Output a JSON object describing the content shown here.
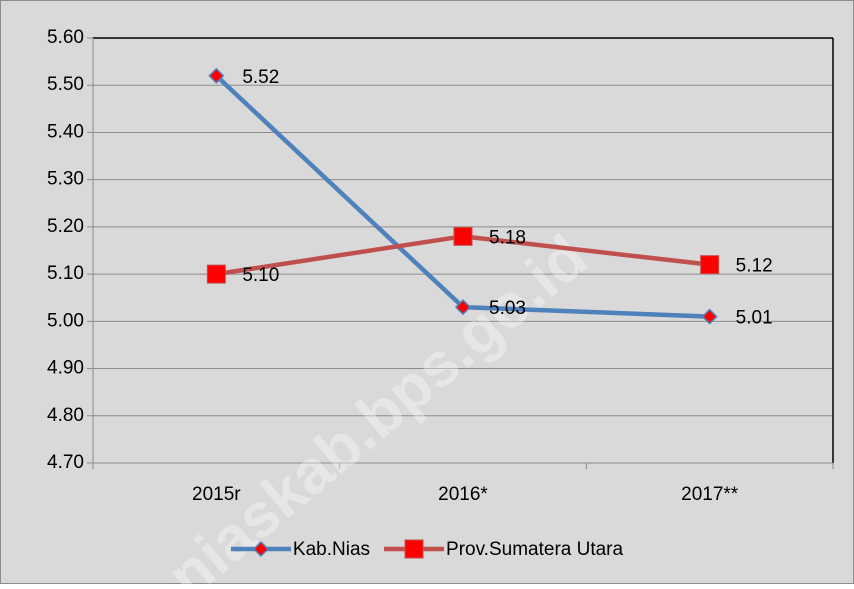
{
  "chart_data": {
    "type": "line",
    "categories": [
      "2015r",
      "2016*",
      "2017**"
    ],
    "series": [
      {
        "name": "Kab.Nias",
        "color": "#4f81bd",
        "marker": "diamond",
        "values": [
          5.52,
          5.03,
          5.01
        ],
        "value_labels": [
          "5.52",
          "5.03",
          "5.01"
        ]
      },
      {
        "name": "Prov.Sumatera Utara",
        "color": "#c0504d",
        "marker": "square",
        "values": [
          5.1,
          5.18,
          5.12
        ],
        "value_labels": [
          "5.10",
          "5.18",
          "5.12"
        ]
      }
    ],
    "ylim": [
      4.7,
      5.6
    ],
    "yticks": [
      {
        "value": 4.7,
        "label": "4.70"
      },
      {
        "value": 4.8,
        "label": "4.80"
      },
      {
        "value": 4.9,
        "label": "4.90"
      },
      {
        "value": 5.0,
        "label": "5.00"
      },
      {
        "value": 5.1,
        "label": "5.10"
      },
      {
        "value": 5.2,
        "label": "5.20"
      },
      {
        "value": 5.3,
        "label": "5.30"
      },
      {
        "value": 5.4,
        "label": "5.40"
      },
      {
        "value": 5.5,
        "label": "5.50"
      },
      {
        "value": 5.6,
        "label": "5.60"
      }
    ],
    "grid": true,
    "legend": "bottom",
    "watermark": "niaskab.bps.go.id"
  }
}
